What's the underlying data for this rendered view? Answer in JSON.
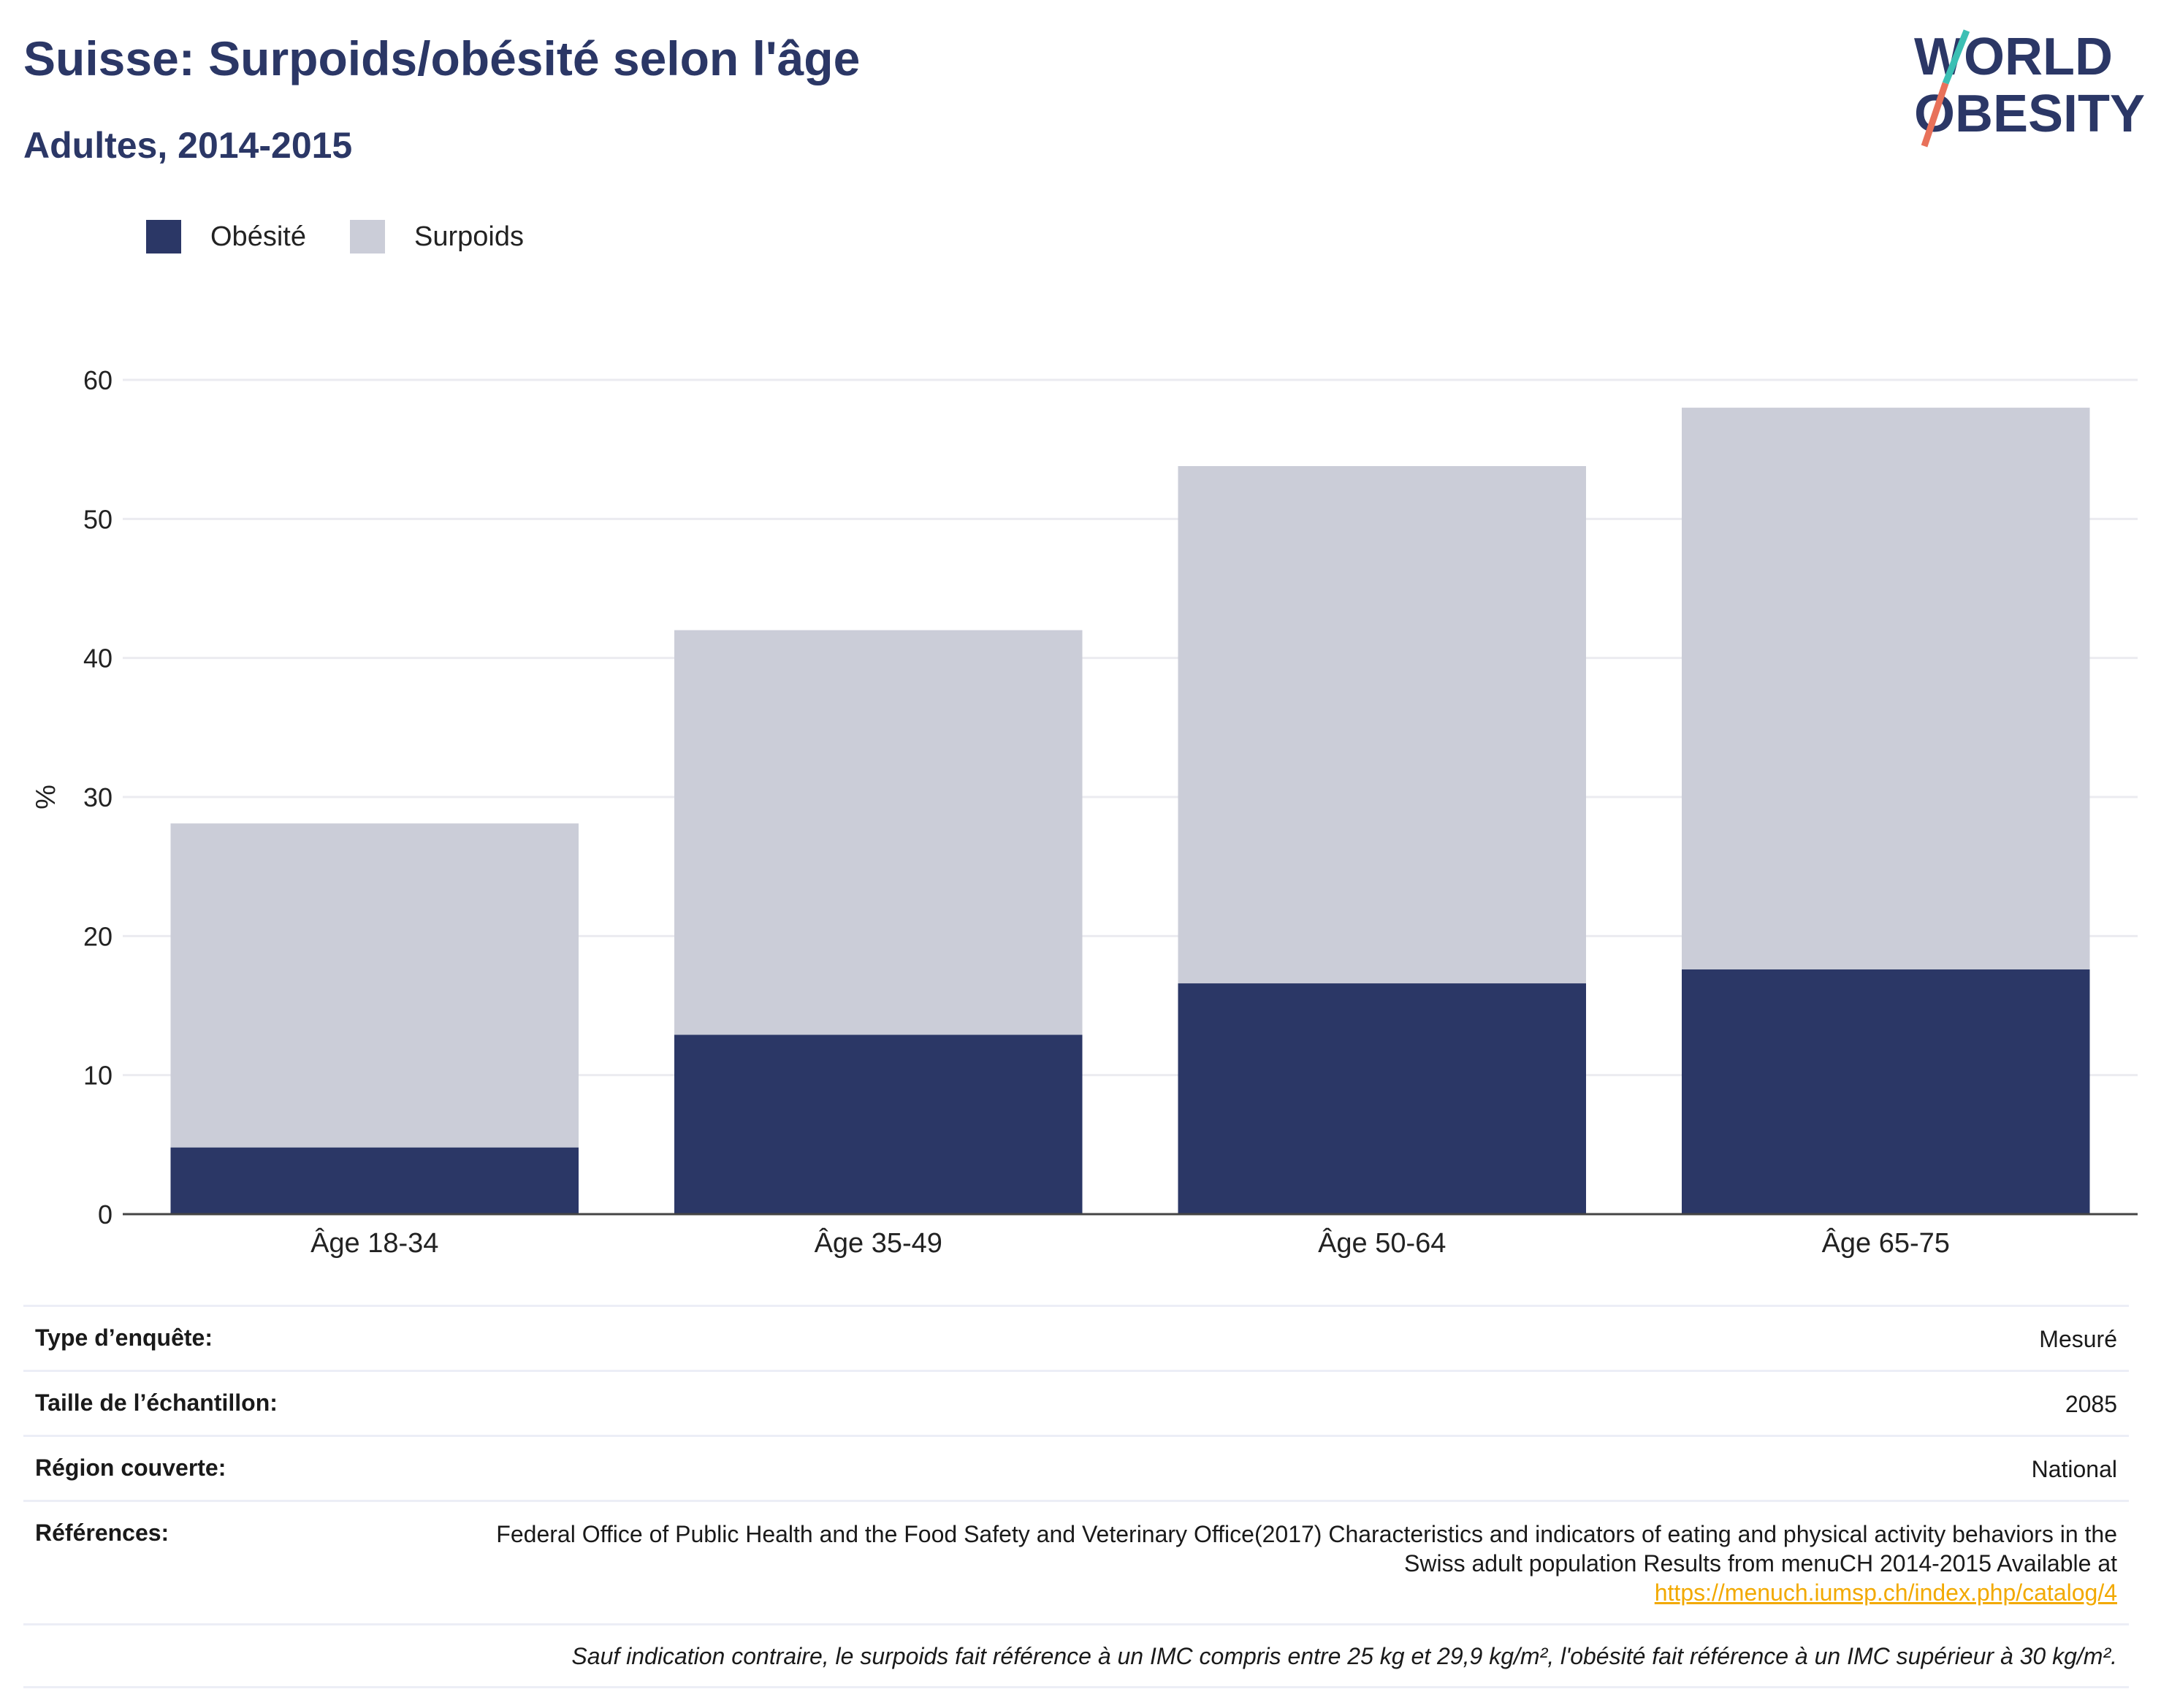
{
  "header": {
    "title": "Suisse: Surpoids/obésité selon l'âge",
    "subtitle": "Adultes, 2014-2015"
  },
  "logo": {
    "line1": "WORLD",
    "line2": "OBESITY"
  },
  "colors": {
    "obesite": "#2b3766",
    "surpoids": "#cbcdd8",
    "title": "#2b3766",
    "link": "#f2a900"
  },
  "chart_data": {
    "type": "bar",
    "stacked": true,
    "categories": [
      "Âge 18-34",
      "Âge 35-49",
      "Âge 50-64",
      "Âge 65-75"
    ],
    "series": [
      {
        "name": "Obésité",
        "values": [
          4.8,
          12.9,
          16.6,
          17.6
        ]
      },
      {
        "name": "Surpoids",
        "values": [
          23.3,
          29.1,
          37.2,
          40.4
        ]
      }
    ],
    "ylabel": "%",
    "xlabel": "",
    "ylim": [
      0,
      62
    ],
    "yticks": [
      0,
      10,
      20,
      30,
      40,
      50,
      60
    ],
    "grid": true,
    "legend_position": "top-left"
  },
  "info": {
    "rows": [
      {
        "key": "Type d’enquête:",
        "value": "Mesuré"
      },
      {
        "key": "Taille de l’échantillon:",
        "value": "2085"
      },
      {
        "key": "Région couverte:",
        "value": "National"
      },
      {
        "key": "Références:",
        "value": "Federal Office of Public Health and the Food Safety and Veterinary Office(2017) Characteristics and indicators of eating and physical activity behaviors in the Swiss adult population Results from menuCH 2014-2015 Available at",
        "link": "https://menuch.iumsp.ch/index.php/catalog/4"
      }
    ],
    "note": "Sauf indication contraire, le surpoids fait référence à un IMC compris entre 25 kg et 29,9 kg/m², l'obésité fait référence à un IMC supérieur à 30 kg/m²."
  }
}
